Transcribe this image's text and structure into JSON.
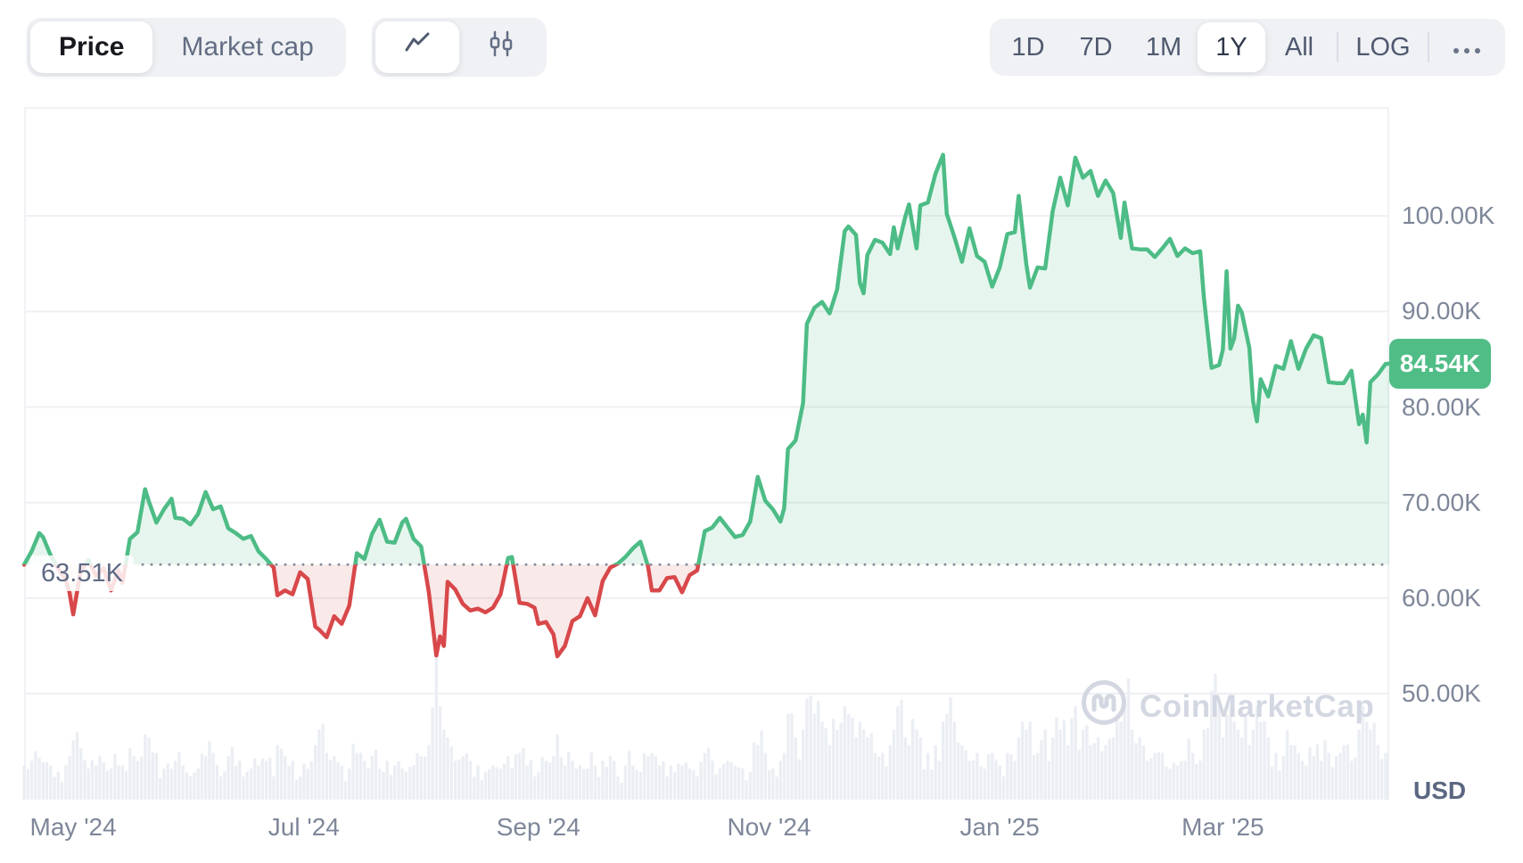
{
  "toolbar": {
    "metric_tabs": [
      {
        "label": "Price",
        "active": true
      },
      {
        "label": "Market cap",
        "active": false
      }
    ],
    "chart_types": [
      {
        "name": "line-chart",
        "active": true
      },
      {
        "name": "candlestick",
        "active": false
      }
    ],
    "ranges": [
      {
        "label": "1D",
        "active": false
      },
      {
        "label": "7D",
        "active": false
      },
      {
        "label": "1M",
        "active": false
      },
      {
        "label": "1Y",
        "active": true
      },
      {
        "label": "All",
        "active": false
      }
    ],
    "log_label": "LOG",
    "more_icon": "ellipsis"
  },
  "axes": {
    "y_unit": "USD",
    "y_ticks": [
      {
        "label": "100.00K",
        "value": 100
      },
      {
        "label": "90.00K",
        "value": 90
      },
      {
        "label": "80.00K",
        "value": 80
      },
      {
        "label": "70.00K",
        "value": 70
      },
      {
        "label": "60.00K",
        "value": 60
      },
      {
        "label": "50.00K",
        "value": 50
      }
    ],
    "x_ticks": [
      {
        "label": "May '24",
        "day": 13
      },
      {
        "label": "Jul '24",
        "day": 74
      },
      {
        "label": "Sep '24",
        "day": 136
      },
      {
        "label": "Nov '24",
        "day": 197
      },
      {
        "label": "Jan '25",
        "day": 258
      },
      {
        "label": "Mar '25",
        "day": 317
      }
    ]
  },
  "price_badge": {
    "label": "84.54K",
    "value": 84.54
  },
  "baseline": {
    "label": "63.51K",
    "value": 63.51
  },
  "watermark": {
    "text": "CoinMarketCap"
  },
  "chart_data": {
    "type": "area",
    "legend": "none",
    "grid": "horizontal",
    "x_total_days": 361,
    "ylim_k": [
      38.9,
      111.4
    ],
    "baseline_k": 63.51,
    "colors": {
      "up": "#4dbc86",
      "up_fill": "rgba(77,188,134,0.14)",
      "down": "#d8484a",
      "down_fill": "rgba(216,72,74,0.12)",
      "volume": "#ebeef3",
      "gridline": "#eef0f3",
      "baseline_dot": "#878d99",
      "badge_bg": "#50bd86"
    },
    "points_format": [
      "day_offset",
      "price_thousand_usd",
      "relative_volume"
    ],
    "points": [
      [
        0,
        63.5,
        0.22
      ],
      [
        2,
        64.9,
        0.25
      ],
      [
        4,
        66.8,
        0.27
      ],
      [
        5,
        66.4,
        0.24
      ],
      [
        7,
        64.5,
        0.22
      ],
      [
        9,
        63.1,
        0.18
      ],
      [
        11,
        61.9,
        0.22
      ],
      [
        12,
        60.6,
        0.28
      ],
      [
        13,
        58.3,
        0.38
      ],
      [
        15,
        62.9,
        0.33
      ],
      [
        17,
        64.0,
        0.2
      ],
      [
        19,
        62.3,
        0.22
      ],
      [
        21,
        63.1,
        0.24
      ],
      [
        23,
        60.8,
        0.2
      ],
      [
        25,
        62.9,
        0.22
      ],
      [
        26,
        61.6,
        0.22
      ],
      [
        28,
        66.2,
        0.33
      ],
      [
        30,
        66.9,
        0.25
      ],
      [
        32,
        71.4,
        0.42
      ],
      [
        33,
        70.1,
        0.4
      ],
      [
        35,
        67.9,
        0.3
      ],
      [
        37,
        69.3,
        0.2
      ],
      [
        39,
        70.4,
        0.2
      ],
      [
        40,
        68.4,
        0.25
      ],
      [
        42,
        68.3,
        0.22
      ],
      [
        44,
        67.7,
        0.15
      ],
      [
        46,
        68.8,
        0.2
      ],
      [
        48,
        71.1,
        0.28
      ],
      [
        50,
        69.3,
        0.3
      ],
      [
        52,
        69.6,
        0.15
      ],
      [
        54,
        67.3,
        0.28
      ],
      [
        56,
        66.8,
        0.22
      ],
      [
        58,
        66.2,
        0.15
      ],
      [
        60,
        66.5,
        0.2
      ],
      [
        62,
        64.9,
        0.22
      ],
      [
        64,
        64.1,
        0.25
      ],
      [
        66,
        63.2,
        0.15
      ],
      [
        67,
        60.3,
        0.35
      ],
      [
        69,
        60.8,
        0.28
      ],
      [
        71,
        60.4,
        0.25
      ],
      [
        73,
        62.7,
        0.15
      ],
      [
        75,
        62.0,
        0.2
      ],
      [
        77,
        57.0,
        0.35
      ],
      [
        78,
        56.7,
        0.45
      ],
      [
        80,
        55.9,
        0.3
      ],
      [
        82,
        58.1,
        0.28
      ],
      [
        84,
        57.3,
        0.22
      ],
      [
        86,
        59.2,
        0.2
      ],
      [
        88,
        64.7,
        0.3
      ],
      [
        90,
        64.1,
        0.25
      ],
      [
        92,
        66.7,
        0.28
      ],
      [
        94,
        68.2,
        0.2
      ],
      [
        96,
        65.9,
        0.25
      ],
      [
        98,
        65.8,
        0.22
      ],
      [
        100,
        67.9,
        0.2
      ],
      [
        101,
        68.3,
        0.18
      ],
      [
        103,
        66.2,
        0.22
      ],
      [
        105,
        65.4,
        0.28
      ],
      [
        107,
        60.7,
        0.35
      ],
      [
        109,
        54.0,
        1.0
      ],
      [
        110,
        56.0,
        0.6
      ],
      [
        111,
        55.0,
        0.45
      ],
      [
        112,
        61.7,
        0.4
      ],
      [
        114,
        60.9,
        0.25
      ],
      [
        116,
        59.4,
        0.28
      ],
      [
        118,
        58.7,
        0.25
      ],
      [
        120,
        58.9,
        0.22
      ],
      [
        122,
        58.5,
        0.18
      ],
      [
        124,
        59.0,
        0.22
      ],
      [
        126,
        60.4,
        0.2
      ],
      [
        128,
        64.2,
        0.28
      ],
      [
        129,
        64.3,
        0.2
      ],
      [
        131,
        59.5,
        0.3
      ],
      [
        133,
        59.4,
        0.22
      ],
      [
        135,
        59.0,
        0.15
      ],
      [
        136,
        57.3,
        0.18
      ],
      [
        138,
        57.5,
        0.25
      ],
      [
        140,
        56.2,
        0.28
      ],
      [
        141,
        53.9,
        0.42
      ],
      [
        143,
        55.0,
        0.22
      ],
      [
        145,
        57.6,
        0.25
      ],
      [
        147,
        58.1,
        0.22
      ],
      [
        149,
        60.0,
        0.2
      ],
      [
        151,
        58.2,
        0.22
      ],
      [
        153,
        61.8,
        0.25
      ],
      [
        155,
        63.2,
        0.28
      ],
      [
        157,
        63.6,
        0.15
      ],
      [
        159,
        64.3,
        0.22
      ],
      [
        161,
        65.2,
        0.22
      ],
      [
        163,
        65.9,
        0.18
      ],
      [
        165,
        63.3,
        0.28
      ],
      [
        166,
        60.8,
        0.3
      ],
      [
        168,
        60.8,
        0.22
      ],
      [
        170,
        62.1,
        0.15
      ],
      [
        172,
        62.2,
        0.18
      ],
      [
        174,
        60.6,
        0.22
      ],
      [
        176,
        62.4,
        0.2
      ],
      [
        178,
        62.9,
        0.15
      ],
      [
        180,
        67.0,
        0.3
      ],
      [
        182,
        67.4,
        0.25
      ],
      [
        184,
        68.4,
        0.2
      ],
      [
        186,
        67.4,
        0.25
      ],
      [
        188,
        66.4,
        0.22
      ],
      [
        190,
        66.6,
        0.2
      ],
      [
        192,
        68.0,
        0.18
      ],
      [
        194,
        72.7,
        0.35
      ],
      [
        196,
        70.2,
        0.3
      ],
      [
        198,
        69.3,
        0.2
      ],
      [
        200,
        68.0,
        0.25
      ],
      [
        201,
        69.4,
        0.3
      ],
      [
        202,
        75.6,
        0.55
      ],
      [
        204,
        76.5,
        0.4
      ],
      [
        206,
        80.4,
        0.45
      ],
      [
        207,
        88.7,
        0.65
      ],
      [
        209,
        90.4,
        0.55
      ],
      [
        211,
        91.0,
        0.5
      ],
      [
        213,
        89.8,
        0.35
      ],
      [
        215,
        92.3,
        0.45
      ],
      [
        217,
        98.4,
        0.6
      ],
      [
        218,
        98.9,
        0.55
      ],
      [
        220,
        98.0,
        0.4
      ],
      [
        221,
        93.0,
        0.5
      ],
      [
        222,
        91.9,
        0.45
      ],
      [
        223,
        95.9,
        0.4
      ],
      [
        225,
        97.5,
        0.3
      ],
      [
        227,
        97.2,
        0.3
      ],
      [
        229,
        96.0,
        0.35
      ],
      [
        230,
        98.8,
        0.45
      ],
      [
        231,
        96.6,
        0.6
      ],
      [
        233,
        99.9,
        0.4
      ],
      [
        234,
        101.2,
        0.35
      ],
      [
        236,
        96.6,
        0.45
      ],
      [
        237,
        101.1,
        0.4
      ],
      [
        239,
        101.4,
        0.3
      ],
      [
        241,
        104.4,
        0.35
      ],
      [
        243,
        106.4,
        0.5
      ],
      [
        244,
        100.2,
        0.55
      ],
      [
        246,
        97.8,
        0.5
      ],
      [
        248,
        95.2,
        0.35
      ],
      [
        250,
        98.7,
        0.25
      ],
      [
        252,
        95.8,
        0.3
      ],
      [
        254,
        95.2,
        0.2
      ],
      [
        256,
        92.6,
        0.3
      ],
      [
        258,
        94.6,
        0.22
      ],
      [
        260,
        98.1,
        0.3
      ],
      [
        262,
        98.3,
        0.25
      ],
      [
        263,
        102.1,
        0.4
      ],
      [
        265,
        95.0,
        0.45
      ],
      [
        266,
        92.5,
        0.5
      ],
      [
        268,
        94.6,
        0.3
      ],
      [
        270,
        94.5,
        0.45
      ],
      [
        272,
        100.5,
        0.4
      ],
      [
        274,
        104.0,
        0.45
      ],
      [
        276,
        101.1,
        0.35
      ],
      [
        278,
        106.1,
        0.6
      ],
      [
        280,
        104.0,
        0.45
      ],
      [
        282,
        104.7,
        0.35
      ],
      [
        284,
        102.1,
        0.4
      ],
      [
        286,
        103.7,
        0.35
      ],
      [
        288,
        102.4,
        0.4
      ],
      [
        290,
        97.7,
        0.5
      ],
      [
        291,
        101.4,
        0.65
      ],
      [
        293,
        96.6,
        0.45
      ],
      [
        295,
        96.5,
        0.4
      ],
      [
        297,
        96.5,
        0.25
      ],
      [
        299,
        95.7,
        0.3
      ],
      [
        301,
        96.6,
        0.3
      ],
      [
        303,
        97.6,
        0.2
      ],
      [
        305,
        95.8,
        0.22
      ],
      [
        307,
        96.6,
        0.25
      ],
      [
        309,
        96.1,
        0.3
      ],
      [
        311,
        96.3,
        0.25
      ],
      [
        312,
        91.4,
        0.45
      ],
      [
        314,
        84.1,
        0.7
      ],
      [
        316,
        84.4,
        0.6
      ],
      [
        317,
        86.0,
        0.4
      ],
      [
        318,
        94.2,
        0.55
      ],
      [
        319,
        86.1,
        0.6
      ],
      [
        320,
        87.2,
        0.5
      ],
      [
        321,
        90.6,
        0.45
      ],
      [
        322,
        89.9,
        0.4
      ],
      [
        324,
        86.2,
        0.35
      ],
      [
        325,
        80.6,
        0.45
      ],
      [
        326,
        78.5,
        0.6
      ],
      [
        327,
        82.9,
        0.5
      ],
      [
        329,
        81.1,
        0.4
      ],
      [
        331,
        84.3,
        0.3
      ],
      [
        333,
        84.0,
        0.28
      ],
      [
        335,
        86.9,
        0.35
      ],
      [
        337,
        84.0,
        0.3
      ],
      [
        339,
        86.1,
        0.22
      ],
      [
        341,
        87.5,
        0.28
      ],
      [
        343,
        87.2,
        0.25
      ],
      [
        345,
        82.6,
        0.3
      ],
      [
        347,
        82.5,
        0.28
      ],
      [
        349,
        82.5,
        0.35
      ],
      [
        351,
        83.8,
        0.25
      ],
      [
        353,
        78.2,
        0.45
      ],
      [
        354,
        79.2,
        0.6
      ],
      [
        355,
        76.3,
        0.5
      ],
      [
        356,
        82.6,
        0.45
      ],
      [
        358,
        83.4,
        0.35
      ],
      [
        360,
        84.5,
        0.3
      ],
      [
        361,
        84.54,
        0.3
      ]
    ]
  }
}
